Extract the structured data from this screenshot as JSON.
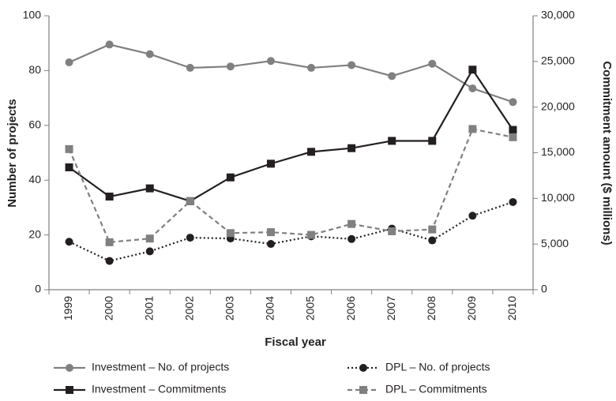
{
  "chart_data": {
    "type": "line",
    "xlabel": "Fiscal year",
    "ylabel": "Number of projects",
    "y2label": "Commitment amount ($ millions)",
    "categories": [
      "1999",
      "2000",
      "2001",
      "2002",
      "2003",
      "2004",
      "2005",
      "2006",
      "2007",
      "2008",
      "2009",
      "2010"
    ],
    "ylim": [
      0,
      100
    ],
    "yticks": [
      0,
      20,
      40,
      60,
      80,
      100
    ],
    "y2lim": [
      0,
      30000
    ],
    "y2ticks": [
      0,
      {
        "value": 5000,
        "label": "5,000"
      },
      {
        "value": 10000,
        "label": "10,000"
      },
      {
        "value": 15000,
        "label": "15,000"
      },
      {
        "value": 20000,
        "label": "20,000"
      },
      {
        "value": 25000,
        "label": "25,000"
      },
      {
        "value": 30000,
        "label": "30,000"
      }
    ],
    "grid": false,
    "legend": "bottom",
    "series": [
      {
        "name": "Investment – No. of projects",
        "color": "#808080",
        "style": "solid",
        "marker": "circle",
        "axis": "y",
        "values": [
          83,
          89.5,
          86,
          81,
          81.5,
          83.5,
          81,
          82,
          78,
          82.5,
          73.5,
          68.5
        ]
      },
      {
        "name": "DPL – No. of projects",
        "color": "#231f20",
        "style": "dotted",
        "marker": "circle",
        "axis": "y",
        "values": [
          17.5,
          10.5,
          14,
          19,
          18.7,
          16.7,
          19.5,
          18.5,
          22.3,
          18,
          27,
          32
        ]
      },
      {
        "name": "Investment – Commitments",
        "color": "#231f20",
        "style": "solid",
        "marker": "square",
        "axis": "y2",
        "values": [
          13400,
          10200,
          11100,
          9700,
          12300,
          13800,
          15100,
          15500,
          16300,
          16300,
          24100,
          17500
        ]
      },
      {
        "name": "DPL – Commitments",
        "color": "#808080",
        "style": "dashed",
        "marker": "square",
        "axis": "y2",
        "values": [
          15400,
          5200,
          5600,
          9700,
          6200,
          6300,
          6000,
          7200,
          6400,
          6600,
          17600,
          16700
        ]
      }
    ]
  }
}
